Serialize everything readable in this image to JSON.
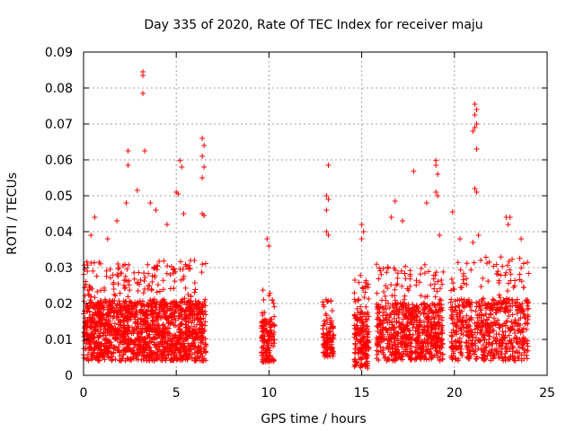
{
  "chart_data": {
    "type": "scatter",
    "title": "Day 335 of 2020, Rate Of TEC Index for receiver maju",
    "xlabel": "GPS time / hours",
    "ylabel": "ROTI / TECUs",
    "xlim": [
      0,
      25
    ],
    "ylim": [
      0,
      0.09
    ],
    "x_ticks": [
      0,
      5,
      10,
      15,
      20,
      25
    ],
    "x_tick_labels": [
      "0",
      "5",
      "10",
      "15",
      "20",
      "25"
    ],
    "y_ticks": [
      0,
      0.01,
      0.02,
      0.03,
      0.04,
      0.05,
      0.06,
      0.07,
      0.08,
      0.09
    ],
    "y_tick_labels": [
      "0",
      "0.01",
      "0.02",
      "0.03",
      "0.04",
      "0.05",
      "0.06",
      "0.07",
      "0.08",
      "0.09"
    ],
    "grid": true,
    "marker": "plus",
    "color": "#ff0000",
    "clusters": [
      {
        "x": [
          0.0,
          6.6
        ],
        "y": [
          0.004,
          0.032
        ],
        "density": 1600
      },
      {
        "x": [
          9.6,
          10.3
        ],
        "y": [
          0.003,
          0.024
        ],
        "density": 140
      },
      {
        "x": [
          12.9,
          13.5
        ],
        "y": [
          0.005,
          0.022
        ],
        "density": 110
      },
      {
        "x": [
          14.6,
          15.4
        ],
        "y": [
          0.002,
          0.028
        ],
        "density": 190
      },
      {
        "x": [
          15.8,
          19.4
        ],
        "y": [
          0.004,
          0.031
        ],
        "density": 700
      },
      {
        "x": [
          19.8,
          24.0
        ],
        "y": [
          0.004,
          0.033
        ],
        "density": 650
      }
    ],
    "outliers": [
      {
        "x": 0.4,
        "y": 0.039
      },
      {
        "x": 0.6,
        "y": 0.044
      },
      {
        "x": 1.3,
        "y": 0.038
      },
      {
        "x": 1.8,
        "y": 0.043
      },
      {
        "x": 2.3,
        "y": 0.048
      },
      {
        "x": 2.4,
        "y": 0.0625
      },
      {
        "x": 2.4,
        "y": 0.0585
      },
      {
        "x": 2.9,
        "y": 0.0515
      },
      {
        "x": 3.2,
        "y": 0.0845
      },
      {
        "x": 3.2,
        "y": 0.0835
      },
      {
        "x": 3.2,
        "y": 0.0785
      },
      {
        "x": 3.3,
        "y": 0.0625
      },
      {
        "x": 3.6,
        "y": 0.048
      },
      {
        "x": 3.9,
        "y": 0.046
      },
      {
        "x": 4.5,
        "y": 0.042
      },
      {
        "x": 5.0,
        "y": 0.051
      },
      {
        "x": 5.1,
        "y": 0.0505
      },
      {
        "x": 5.2,
        "y": 0.0598
      },
      {
        "x": 5.3,
        "y": 0.058
      },
      {
        "x": 5.4,
        "y": 0.045
      },
      {
        "x": 6.4,
        "y": 0.066
      },
      {
        "x": 6.5,
        "y": 0.064
      },
      {
        "x": 6.4,
        "y": 0.061
      },
      {
        "x": 6.5,
        "y": 0.058
      },
      {
        "x": 6.4,
        "y": 0.055
      },
      {
        "x": 6.4,
        "y": 0.045
      },
      {
        "x": 6.5,
        "y": 0.0445
      },
      {
        "x": 9.9,
        "y": 0.038
      },
      {
        "x": 10.0,
        "y": 0.036
      },
      {
        "x": 13.2,
        "y": 0.0585
      },
      {
        "x": 13.1,
        "y": 0.05
      },
      {
        "x": 13.2,
        "y": 0.049
      },
      {
        "x": 13.1,
        "y": 0.046
      },
      {
        "x": 13.1,
        "y": 0.04
      },
      {
        "x": 13.2,
        "y": 0.039
      },
      {
        "x": 15.0,
        "y": 0.042
      },
      {
        "x": 15.1,
        "y": 0.04
      },
      {
        "x": 15.0,
        "y": 0.038
      },
      {
        "x": 16.6,
        "y": 0.044
      },
      {
        "x": 16.8,
        "y": 0.0485
      },
      {
        "x": 17.2,
        "y": 0.043
      },
      {
        "x": 17.8,
        "y": 0.0568
      },
      {
        "x": 18.5,
        "y": 0.048
      },
      {
        "x": 19.0,
        "y": 0.0598
      },
      {
        "x": 19.0,
        "y": 0.0585
      },
      {
        "x": 19.1,
        "y": 0.056
      },
      {
        "x": 19.0,
        "y": 0.051
      },
      {
        "x": 19.1,
        "y": 0.05
      },
      {
        "x": 19.2,
        "y": 0.039
      },
      {
        "x": 19.9,
        "y": 0.0455
      },
      {
        "x": 20.3,
        "y": 0.038
      },
      {
        "x": 21.1,
        "y": 0.0755
      },
      {
        "x": 21.2,
        "y": 0.074
      },
      {
        "x": 21.1,
        "y": 0.0725
      },
      {
        "x": 21.2,
        "y": 0.07
      },
      {
        "x": 21.1,
        "y": 0.069
      },
      {
        "x": 21.0,
        "y": 0.068
      },
      {
        "x": 21.2,
        "y": 0.063
      },
      {
        "x": 21.1,
        "y": 0.052
      },
      {
        "x": 21.2,
        "y": 0.051
      },
      {
        "x": 21.3,
        "y": 0.039
      },
      {
        "x": 21.0,
        "y": 0.037
      },
      {
        "x": 22.8,
        "y": 0.044
      },
      {
        "x": 22.9,
        "y": 0.042
      },
      {
        "x": 23.0,
        "y": 0.044
      },
      {
        "x": 23.6,
        "y": 0.038
      }
    ]
  }
}
